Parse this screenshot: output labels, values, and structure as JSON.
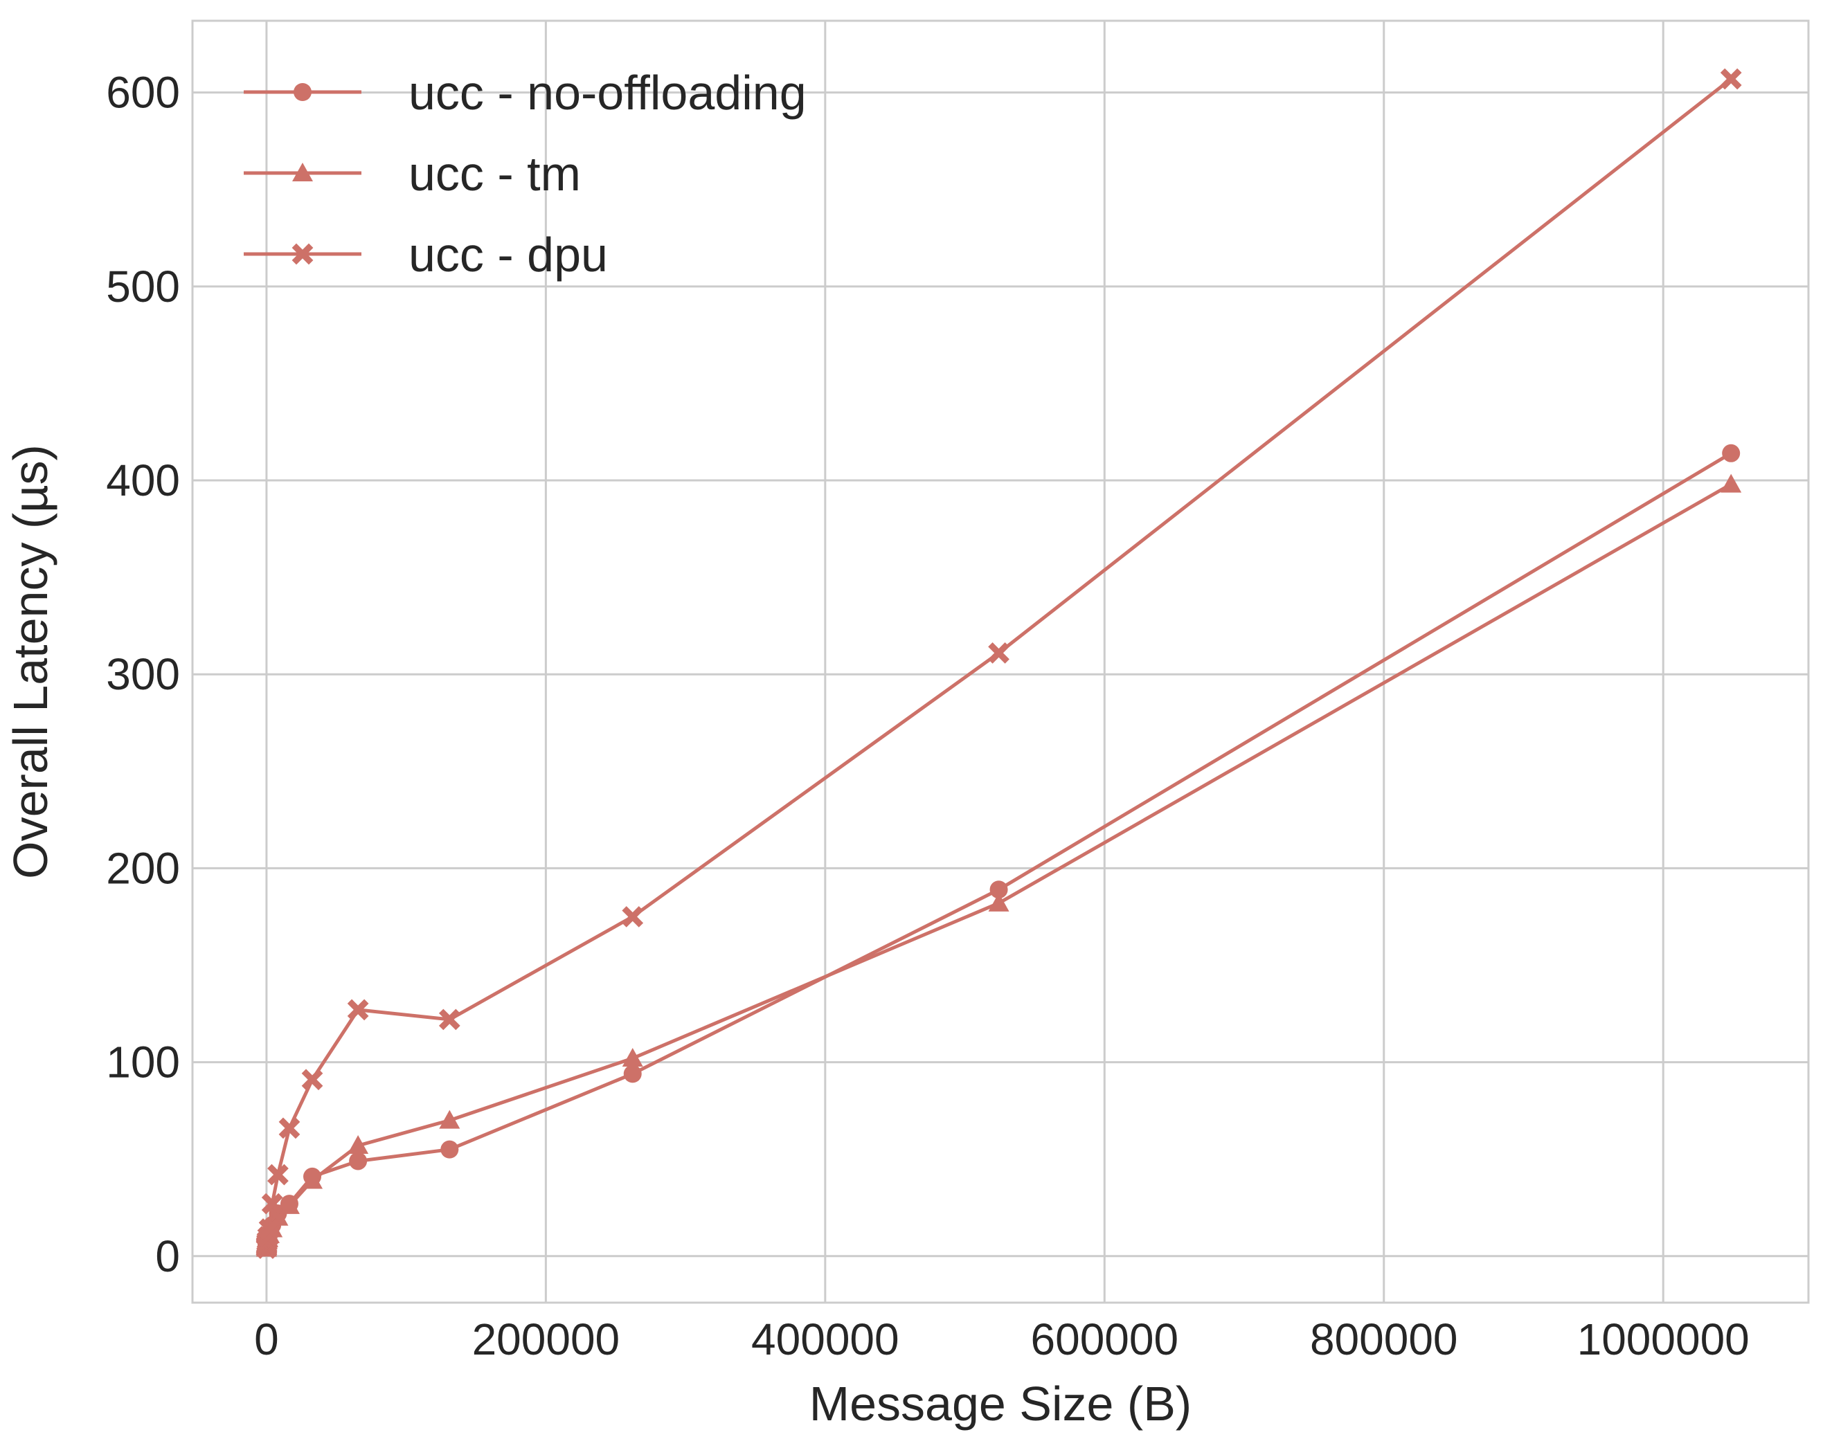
{
  "chart_data": {
    "type": "line",
    "title": "",
    "xlabel": "Message Size (B)",
    "ylabel": "Overall Latency (µs)",
    "xlim": [
      -53000,
      1104000
    ],
    "ylim": [
      -24,
      637
    ],
    "xticks": [
      0,
      200000,
      400000,
      600000,
      800000,
      1000000
    ],
    "xtick_labels": [
      "0",
      "200000",
      "400000",
      "600000",
      "800000",
      "1000000"
    ],
    "yticks": [
      0,
      100,
      200,
      300,
      400,
      500,
      600
    ],
    "ytick_labels": [
      "0",
      "100",
      "200",
      "300",
      "400",
      "500",
      "600"
    ],
    "grid": true,
    "legend_position": "top-left",
    "color": "#cd7168",
    "series": [
      {
        "name": "ucc - no-offloading",
        "marker": "circle",
        "x": [
          8,
          16,
          32,
          64,
          128,
          256,
          512,
          1024,
          2048,
          4096,
          8192,
          16384,
          32768,
          65536,
          131072,
          262144,
          524288,
          1048576
        ],
        "y": [
          5,
          5.5,
          6,
          6.5,
          7,
          8,
          9,
          10,
          12,
          16,
          22,
          27,
          41,
          49,
          55,
          94,
          189,
          414
        ]
      },
      {
        "name": "ucc - tm",
        "marker": "triangle",
        "x": [
          8,
          16,
          32,
          64,
          128,
          256,
          512,
          1024,
          2048,
          4096,
          8192,
          16384,
          32768,
          65536,
          131072,
          262144,
          524288,
          1048576
        ],
        "y": [
          4,
          4.5,
          5,
          5.5,
          6,
          7,
          8,
          9,
          11,
          14,
          20,
          26,
          39,
          57,
          70,
          102,
          182,
          398
        ]
      },
      {
        "name": "ucc - dpu",
        "marker": "x",
        "x": [
          8,
          16,
          32,
          64,
          128,
          256,
          512,
          1024,
          2048,
          4096,
          8192,
          16384,
          32768,
          65536,
          131072,
          262144,
          524288,
          1048576
        ],
        "y": [
          4,
          4.5,
          5,
          5.5,
          6,
          7,
          8,
          10,
          14,
          27,
          42,
          66,
          91,
          127,
          122,
          175,
          311,
          607
        ]
      }
    ]
  }
}
